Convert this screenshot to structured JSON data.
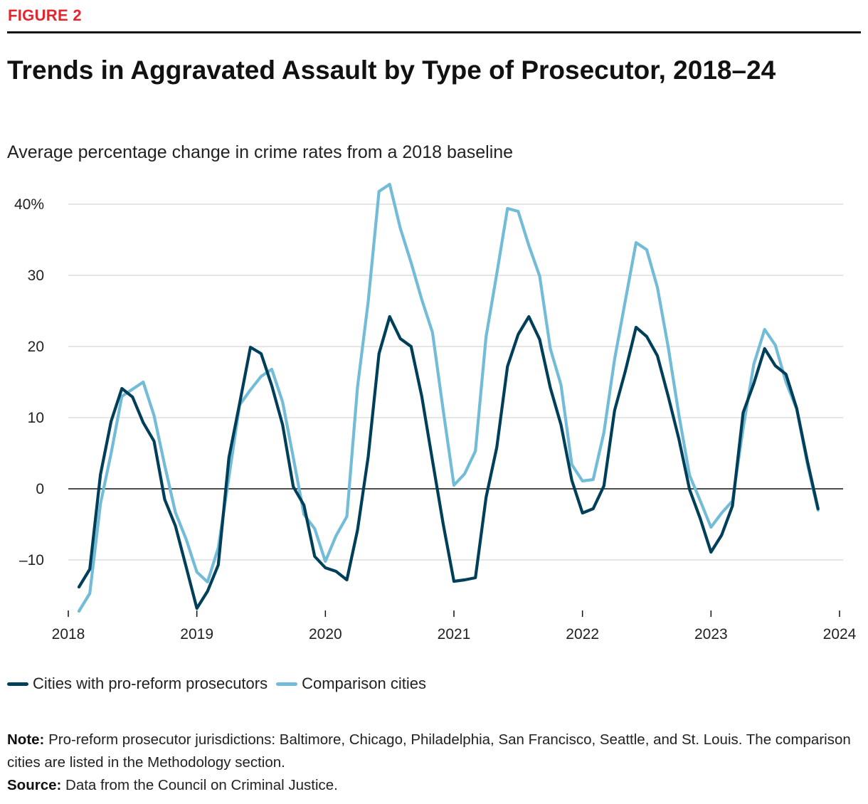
{
  "figure_label": "FIGURE 2",
  "title": "Trends in Aggravated Assault by Type of Prosecutor, 2018–24",
  "subtitle": "Average percentage change in crime rates from a 2018 baseline",
  "legend": {
    "series1": "Cities with pro-reform prosecutors",
    "series2": "Comparison cities"
  },
  "note": {
    "label": "Note:",
    "text": "Pro-reform prosecutor jurisdictions: Baltimore, Chicago, Philadelphia, San Francisco, Seattle, and St. Louis. The comparison cities are listed in the Methodology section."
  },
  "source": {
    "label": "Source:",
    "text": "Data from the Council on Criminal Justice."
  },
  "colors": {
    "series1": "#003f5a",
    "series2": "#73bcd8",
    "grid": "#d6d6d6",
    "zero_line": "#111111",
    "accent": "#e3262f"
  },
  "chart_data": {
    "type": "line",
    "title": "Trends in Aggravated Assault by Type of Prosecutor, 2018–24",
    "subtitle": "Average percentage change in crime rates from a 2018 baseline",
    "xlabel": "",
    "ylabel": "",
    "xlim": [
      2018,
      2024
    ],
    "ylim": [
      -17,
      43
    ],
    "x_ticks": [
      2018,
      2019,
      2020,
      2021,
      2022,
      2023,
      2024
    ],
    "x_tick_labels": [
      "2018",
      "2019",
      "2020",
      "2021",
      "2022",
      "2023",
      "2024"
    ],
    "y_ticks": [
      -10,
      0,
      10,
      20,
      30,
      40
    ],
    "y_tick_labels": [
      "–10",
      "0",
      "10",
      "20",
      "30",
      "40%"
    ],
    "grid": true,
    "legend_position": "bottom-left",
    "x": [
      2018.083,
      2018.167,
      2018.25,
      2018.333,
      2018.417,
      2018.5,
      2018.583,
      2018.667,
      2018.75,
      2018.833,
      2018.917,
      2019.0,
      2019.083,
      2019.167,
      2019.25,
      2019.333,
      2019.417,
      2019.5,
      2019.583,
      2019.667,
      2019.75,
      2019.833,
      2019.917,
      2020.0,
      2020.083,
      2020.167,
      2020.25,
      2020.333,
      2020.417,
      2020.5,
      2020.583,
      2020.667,
      2020.75,
      2020.833,
      2020.917,
      2021.0,
      2021.083,
      2021.167,
      2021.25,
      2021.333,
      2021.417,
      2021.5,
      2021.583,
      2021.667,
      2021.75,
      2021.833,
      2021.917,
      2022.0,
      2022.083,
      2022.167,
      2022.25,
      2022.333,
      2022.417,
      2022.5,
      2022.583,
      2022.667,
      2022.75,
      2022.833,
      2022.917,
      2023.0,
      2023.083,
      2023.167,
      2023.25,
      2023.333,
      2023.417,
      2023.5,
      2023.583,
      2023.667,
      2023.75,
      2023.833
    ],
    "series": [
      {
        "name": "Cities with pro-reform prosecutors",
        "values": [
          -13.8,
          -11.3,
          2.0,
          9.5,
          14.1,
          12.9,
          9.3,
          6.7,
          -1.5,
          -5.2,
          -11.0,
          -16.8,
          -14.4,
          -10.7,
          4.4,
          12.0,
          19.9,
          19.0,
          14.5,
          9.0,
          0.3,
          -2.3,
          -9.5,
          -11.1,
          -11.6,
          -12.8,
          -5.8,
          4.5,
          19.0,
          24.2,
          21.1,
          20.0,
          13.0,
          4.0,
          -5.0,
          -13.0,
          -12.8,
          -12.5,
          -1.2,
          5.8,
          17.2,
          21.7,
          24.2,
          21.0,
          14.2,
          9.0,
          1.2,
          -3.4,
          -2.8,
          0.4,
          11.0,
          16.5,
          22.7,
          21.4,
          18.7,
          13.0,
          7.0,
          -0.1,
          -4.2,
          -8.9,
          -6.5,
          -2.4,
          10.7,
          14.8,
          19.7,
          17.3,
          16.1,
          11.3,
          3.9,
          -2.8
        ]
      },
      {
        "name": "Comparison cities",
        "values": [
          -17.2,
          -14.7,
          -2.1,
          5.0,
          13.0,
          14.0,
          15.0,
          10.3,
          3.3,
          -3.3,
          -7.1,
          -11.7,
          -13.1,
          -8.3,
          1.7,
          11.8,
          13.9,
          15.8,
          16.8,
          12.2,
          4.4,
          -3.6,
          -5.6,
          -10.2,
          -6.6,
          -3.9,
          14.3,
          26.3,
          41.8,
          42.8,
          36.6,
          31.8,
          26.6,
          22.0,
          11.0,
          0.5,
          2.1,
          5.3,
          21.4,
          30.2,
          39.4,
          39.0,
          34.2,
          29.9,
          19.7,
          14.6,
          3.4,
          1.1,
          1.3,
          7.9,
          18.2,
          26.4,
          34.6,
          33.6,
          28.3,
          19.9,
          10.4,
          1.9,
          -1.7,
          -5.4,
          -3.4,
          -1.7,
          8.5,
          17.5,
          22.4,
          20.2,
          15.0,
          11.2,
          3.5,
          -3.0
        ]
      }
    ]
  }
}
